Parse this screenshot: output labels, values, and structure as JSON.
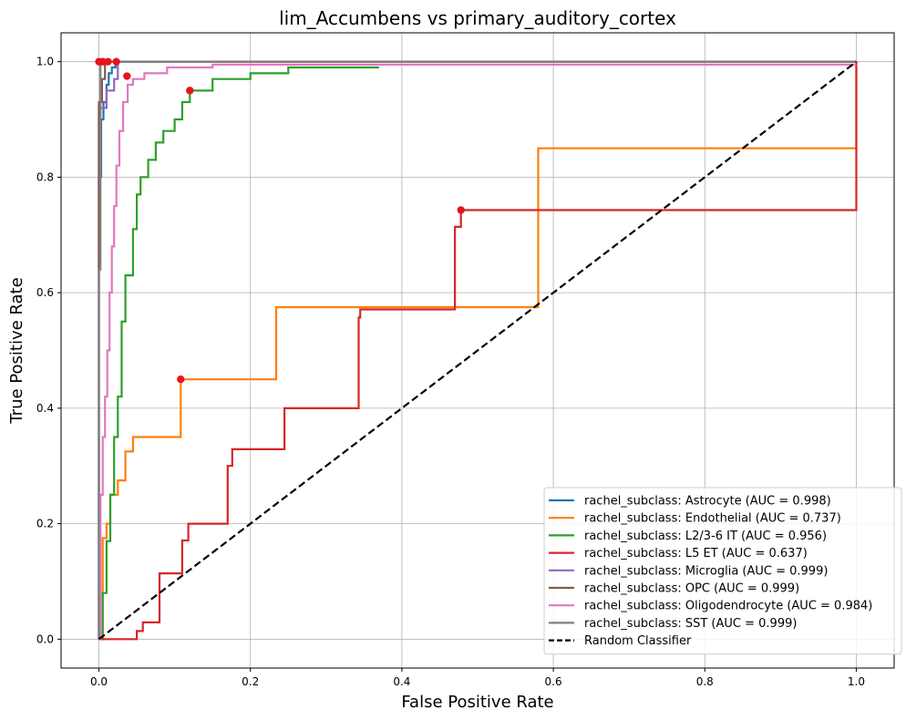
{
  "chart_data": {
    "type": "line",
    "title": "lim_Accumbens vs primary_auditory_cortex",
    "xlabel": "False Positive Rate",
    "ylabel": "True Positive Rate",
    "xlim": [
      -0.05,
      1.05
    ],
    "ylim": [
      -0.05,
      1.05
    ],
    "xticks": [
      0.0,
      0.2,
      0.4,
      0.6,
      0.8,
      1.0
    ],
    "xtick_labels": [
      "0.0",
      "0.2",
      "0.4",
      "0.6",
      "0.8",
      "1.0"
    ],
    "yticks": [
      0.0,
      0.2,
      0.4,
      0.6,
      0.8,
      1.0
    ],
    "ytick_labels": [
      "0.0",
      "0.2",
      "0.4",
      "0.6",
      "0.8",
      "1.0"
    ],
    "grid": true,
    "legend_position": "lower-right",
    "marker_color": "#e8141c",
    "series": [
      {
        "name": "rachel_subclass: Astrocyte (AUC = 0.998)",
        "color": "#1f77b4",
        "dashed": false,
        "x": [
          0,
          0,
          0.003,
          0.003,
          0.006,
          0.006,
          0.01,
          0.01,
          0.013,
          0.013,
          0.017,
          0.017,
          0.022,
          0.022,
          1.0
        ],
        "y": [
          0,
          0.8,
          0.8,
          0.9,
          0.9,
          0.93,
          0.93,
          0.96,
          0.96,
          0.98,
          0.98,
          0.99,
          0.99,
          1.0,
          1.0
        ],
        "markers": [
          [
            0.012,
            1.0
          ]
        ]
      },
      {
        "name": "rachel_subclass: Endothelial (AUC = 0.737)",
        "color": "#ff7f0e",
        "dashed": false,
        "x": [
          0,
          0.005,
          0.005,
          0.01,
          0.01,
          0.015,
          0.015,
          0.025,
          0.025,
          0.035,
          0.035,
          0.045,
          0.045,
          0.058,
          0.058,
          0.108,
          0.108,
          0.234,
          0.234,
          0.58,
          0.58,
          1.0,
          1.0
        ],
        "y": [
          0,
          0,
          0.175,
          0.175,
          0.2,
          0.2,
          0.25,
          0.25,
          0.275,
          0.275,
          0.325,
          0.325,
          0.35,
          0.35,
          0.35,
          0.35,
          0.45,
          0.45,
          0.575,
          0.575,
          0.85,
          0.85,
          1.0
        ],
        "markers": [
          [
            0.108,
            0.45
          ]
        ]
      },
      {
        "name": "rachel_subclass: L2/3-6 IT (AUC = 0.956)",
        "color": "#2ca02c",
        "dashed": false,
        "x": [
          0,
          0.005,
          0.005,
          0.01,
          0.01,
          0.015,
          0.015,
          0.02,
          0.02,
          0.025,
          0.025,
          0.03,
          0.03,
          0.035,
          0.035,
          0.045,
          0.045,
          0.05,
          0.05,
          0.055,
          0.055,
          0.065,
          0.065,
          0.075,
          0.075,
          0.085,
          0.085,
          0.1,
          0.1,
          0.11,
          0.11,
          0.12,
          0.12,
          0.15,
          0.15,
          0.2,
          0.2,
          0.25,
          0.25,
          0.37
        ],
        "y": [
          0,
          0,
          0.08,
          0.08,
          0.17,
          0.17,
          0.25,
          0.25,
          0.35,
          0.35,
          0.42,
          0.42,
          0.55,
          0.55,
          0.63,
          0.63,
          0.71,
          0.71,
          0.77,
          0.77,
          0.8,
          0.8,
          0.83,
          0.83,
          0.86,
          0.86,
          0.88,
          0.88,
          0.9,
          0.9,
          0.93,
          0.93,
          0.95,
          0.95,
          0.97,
          0.97,
          0.98,
          0.98,
          0.99,
          0.99
        ],
        "markers": [
          [
            0.12,
            0.95
          ]
        ]
      },
      {
        "name": "rachel_subclass: L5 ET (AUC = 0.637)",
        "color": "#d62728",
        "dashed": false,
        "x": [
          0,
          0.05,
          0.05,
          0.058,
          0.058,
          0.08,
          0.08,
          0.11,
          0.11,
          0.118,
          0.118,
          0.17,
          0.17,
          0.176,
          0.176,
          0.245,
          0.245,
          0.343,
          0.343,
          0.345,
          0.345,
          0.47,
          0.47,
          0.478,
          0.478,
          1.0,
          1.0
        ],
        "y": [
          0,
          0,
          0.014,
          0.014,
          0.029,
          0.029,
          0.114,
          0.114,
          0.171,
          0.171,
          0.2,
          0.2,
          0.3,
          0.3,
          0.329,
          0.329,
          0.4,
          0.4,
          0.557,
          0.557,
          0.571,
          0.571,
          0.714,
          0.714,
          0.743,
          0.743,
          1.0
        ],
        "markers": [
          [
            0.478,
            0.743
          ]
        ]
      },
      {
        "name": "rachel_subclass: Microglia (AUC = 0.999)",
        "color": "#9467bd",
        "dashed": false,
        "x": [
          0,
          0,
          0.01,
          0.01,
          0.02,
          0.02,
          0.025,
          0.025,
          1.0
        ],
        "y": [
          0,
          0.92,
          0.92,
          0.95,
          0.95,
          0.97,
          0.97,
          1.0,
          1.0
        ],
        "markers": [
          [
            0.023,
            1.0
          ]
        ]
      },
      {
        "name": "rachel_subclass: OPC (AUC = 0.999)",
        "color": "#8c564b",
        "dashed": false,
        "x": [
          0,
          0,
          0.004,
          0.004,
          0.008,
          0.008,
          1.0
        ],
        "y": [
          0,
          0.93,
          0.93,
          0.97,
          0.97,
          1.0,
          1.0
        ],
        "markers": [
          [
            0.005,
            1.0
          ]
        ]
      },
      {
        "name": "rachel_subclass: Oligodendrocyte (AUC = 0.984)",
        "color": "#e377c2",
        "dashed": false,
        "x": [
          0,
          0.002,
          0.002,
          0.005,
          0.005,
          0.008,
          0.008,
          0.011,
          0.011,
          0.014,
          0.014,
          0.017,
          0.017,
          0.02,
          0.02,
          0.023,
          0.023,
          0.027,
          0.027,
          0.032,
          0.032,
          0.038,
          0.038,
          0.045,
          0.045,
          0.06,
          0.06,
          0.09,
          0.09,
          0.15,
          0.15,
          1.0
        ],
        "y": [
          0,
          0,
          0.25,
          0.25,
          0.35,
          0.35,
          0.42,
          0.42,
          0.5,
          0.5,
          0.6,
          0.6,
          0.68,
          0.68,
          0.75,
          0.75,
          0.82,
          0.82,
          0.88,
          0.88,
          0.93,
          0.93,
          0.96,
          0.96,
          0.97,
          0.97,
          0.98,
          0.98,
          0.99,
          0.99,
          0.995,
          0.995
        ],
        "markers": [
          [
            0.037,
            0.975
          ]
        ]
      },
      {
        "name": "rachel_subclass: SST (AUC = 0.999)",
        "color": "#7f7f7f",
        "dashed": false,
        "x": [
          0,
          0,
          0.002,
          0.002,
          1.0
        ],
        "y": [
          0,
          0.64,
          0.64,
          1.0,
          1.0
        ],
        "markers": [
          [
            0.0,
            1.0
          ]
        ]
      },
      {
        "name": "Random Classifier",
        "color": "#000000",
        "dashed": true,
        "x": [
          0,
          1
        ],
        "y": [
          0,
          1
        ],
        "markers": []
      }
    ]
  }
}
